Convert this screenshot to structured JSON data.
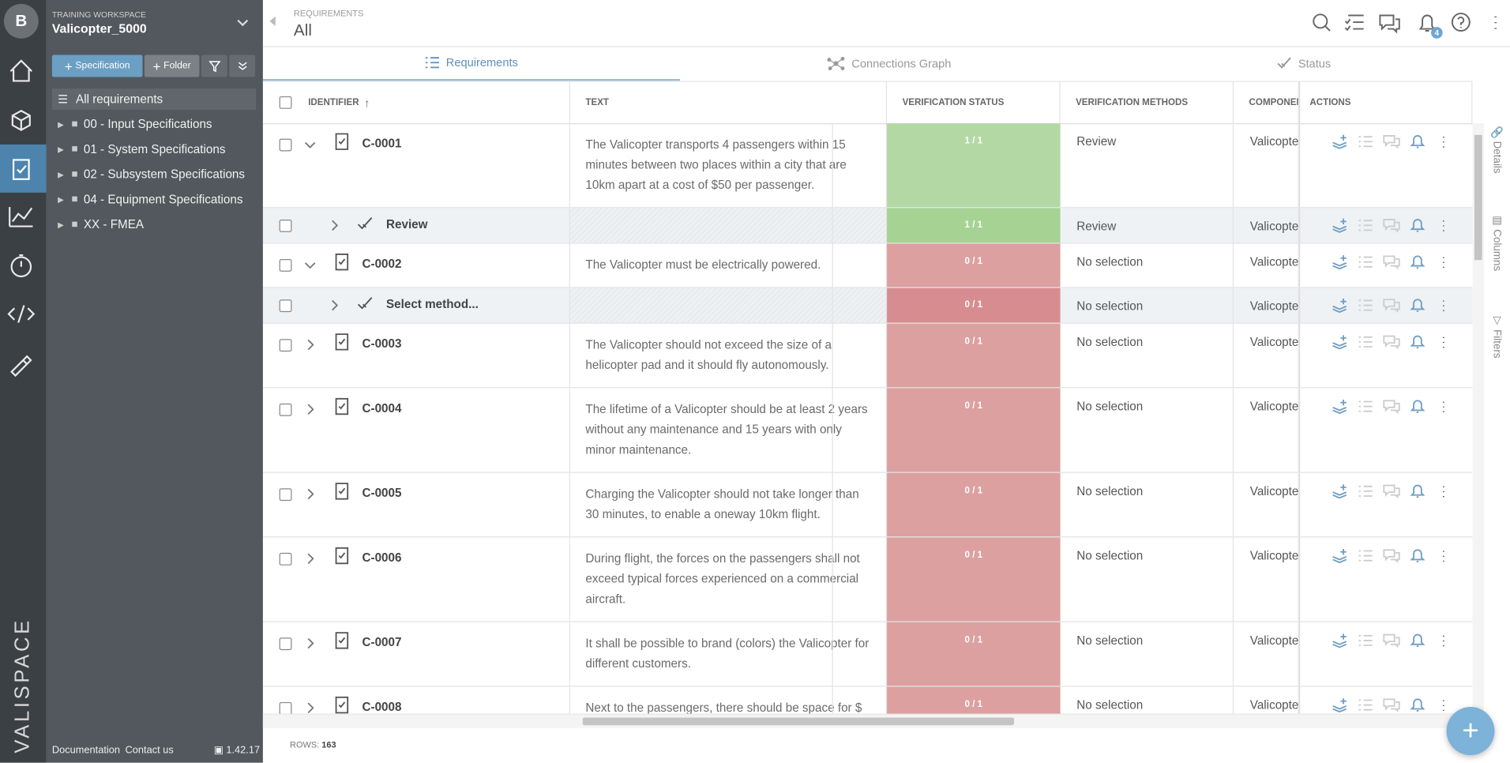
{
  "sidebar": {
    "avatar": "B",
    "workspace_label": "TRAINING WORKSPACE",
    "project": "Valicopter_5000",
    "buttons": [
      "Specification",
      "Folder"
    ],
    "tree": [
      "All requirements",
      "00 - Input Specifications",
      "01 - System Specifications",
      "02 - Subsystem Specifications",
      "04 - Equipment Specifications",
      "XX - FMEA"
    ],
    "footer_links": [
      "Documentation",
      "Contact us"
    ],
    "version": "1.42.17",
    "logo": "VALISPACE"
  },
  "header": {
    "section": "REQUIREMENTS",
    "view": "All",
    "notification_count": 4
  },
  "tabs": [
    "Requirements",
    "Connections Graph",
    "Status"
  ],
  "side_tabs": [
    "Details",
    "Columns",
    "Filters"
  ],
  "table": {
    "columns": [
      "IDENTIFIER",
      "TEXT",
      "VERIFICATION STATUS",
      "VERIFICATION METHODS",
      "COMPONENT",
      "ACTIONS"
    ],
    "rows": [
      {
        "identifier": "C-0001",
        "text": "The Valicopter transports 4 passengers within 15 minutes between two places within a city that are 10km apart at a cost of $50 per passenger.",
        "status": "1 / 1",
        "method": "Review",
        "component": "Valicopter",
        "children": [
          {
            "identifier": "Review",
            "status": "1 / 1",
            "method": "Review",
            "component": "Valicopter"
          }
        ]
      },
      {
        "identifier": "C-0002",
        "text": "The Valicopter must be electrically powered.",
        "status": "0 / 1",
        "method": "No selection",
        "component": "Valicopter",
        "children": [
          {
            "identifier": "Select method...",
            "status": "0 / 1",
            "method": "No selection",
            "component": "Valicopter"
          }
        ]
      },
      {
        "identifier": "C-0003",
        "text": "The Valicopter should not exceed the size of a helicopter pad and it should fly autonomously.",
        "status": "0 / 1",
        "method": "No selection",
        "component": "Valicopter"
      },
      {
        "identifier": "C-0004",
        "text": "The lifetime of a Valicopter should be at least 2 years without any maintenance and 15 years with only minor maintenance.",
        "status": "0 / 1",
        "method": "No selection",
        "component": "Valicopter"
      },
      {
        "identifier": "C-0005",
        "text": "Charging the Valicopter should not take longer than 30 minutes, to enable a oneway 10km flight.",
        "status": "0 / 1",
        "method": "No selection",
        "component": "Valicopter"
      },
      {
        "identifier": "C-0006",
        "text": "During flight, the forces on the passengers shall not exceed typical forces experienced on a commercial aircraft.",
        "status": "0 / 1",
        "method": "No selection",
        "component": "Valicopter"
      },
      {
        "identifier": "C-0007",
        "text": "It shall be possible to brand (colors) the Valicopter for different customers.",
        "status": "0 / 1",
        "method": "No selection",
        "component": "Valicopter"
      },
      {
        "identifier": "C-0008",
        "text": "Next to the passengers, there should be space for $",
        "status": "0 / 1",
        "method": "No selection",
        "component": "Valicopter"
      }
    ]
  },
  "footer": {
    "rows_label": "ROWS:",
    "rows": 163
  }
}
